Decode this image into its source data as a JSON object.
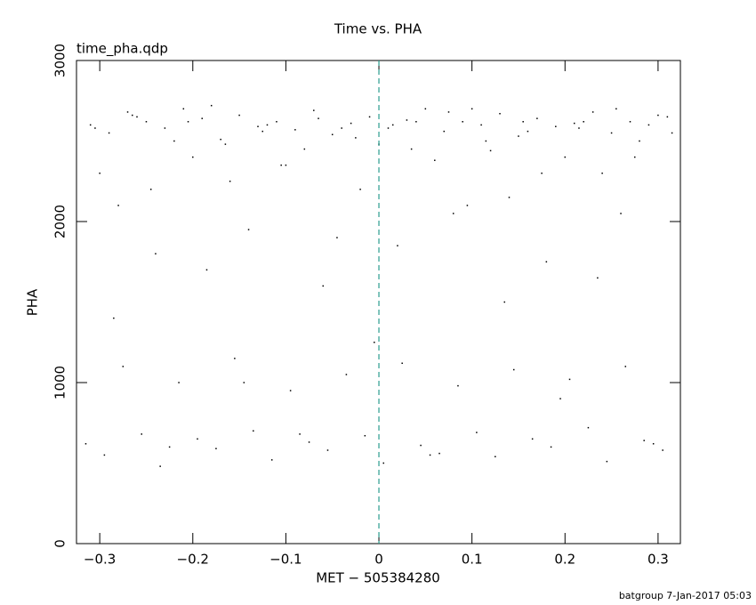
{
  "chart_data": {
    "type": "scatter",
    "title": "Time vs. PHA",
    "subtitle": "time_pha.qdp",
    "x_label": "MET − 505384280",
    "y_label": "PHA",
    "footer": "batgroup  7-Jan-2017 05:03",
    "xlim": [
      -0.325,
      0.324
    ],
    "ylim": [
      0,
      3000
    ],
    "xticks": [
      {
        "value": -0.3,
        "label": "−0.3"
      },
      {
        "value": -0.2,
        "label": "−0.2"
      },
      {
        "value": -0.1,
        "label": "−0.1"
      },
      0,
      0.1,
      0.2,
      0.3
    ],
    "yticks": [
      0,
      1000,
      2000,
      3000
    ],
    "vline": 0,
    "vline_color": "#2a9d8f",
    "color": "#000000",
    "x": [
      -0.31,
      -0.29,
      -0.27,
      -0.25,
      -0.23,
      -0.21,
      -0.19,
      -0.17,
      -0.15,
      -0.13,
      -0.11,
      -0.09,
      -0.07,
      -0.05,
      -0.03,
      -0.01,
      0.01,
      0.03,
      0.05,
      0.07,
      0.09,
      0.11,
      0.13,
      0.15,
      0.17,
      0.19,
      0.21,
      0.23,
      0.25,
      0.27,
      0.29,
      0.31,
      -0.3,
      -0.28,
      -0.26,
      -0.24,
      -0.22,
      -0.2,
      -0.18,
      -0.16,
      -0.14,
      -0.12,
      -0.1,
      -0.08,
      -0.06,
      -0.04,
      -0.02,
      0.0,
      0.02,
      0.04,
      0.06,
      0.08,
      0.1,
      0.12,
      0.14,
      0.16,
      0.18,
      0.2,
      0.22,
      0.24,
      0.26,
      0.28,
      0.3,
      -0.315,
      -0.295,
      -0.275,
      -0.255,
      -0.235,
      -0.215,
      -0.195,
      -0.175,
      -0.155,
      -0.135,
      -0.115,
      -0.095,
      -0.075,
      -0.055,
      -0.035,
      -0.015,
      0.005,
      0.025,
      0.045,
      0.065,
      0.085,
      0.105,
      0.125,
      0.145,
      0.165,
      0.185,
      0.205,
      0.225,
      0.245,
      0.265,
      0.285,
      0.305,
      -0.305,
      -0.285,
      -0.265,
      -0.245,
      -0.225,
      -0.205,
      -0.185,
      -0.165,
      -0.145,
      -0.125,
      -0.105,
      -0.085,
      -0.065,
      -0.045,
      -0.025,
      -0.005,
      0.015,
      0.035,
      0.055,
      0.075,
      0.095,
      0.115,
      0.135,
      0.155,
      0.175,
      0.195,
      0.215,
      0.235,
      0.255,
      0.275,
      0.295,
      0.315
    ],
    "y": [
      2600,
      2550,
      2680,
      2620,
      2580,
      2700,
      2640,
      2510,
      2660,
      2590,
      2620,
      2570,
      2690,
      2540,
      2610,
      2650,
      2580,
      2630,
      2700,
      2560,
      2620,
      2600,
      2670,
      2530,
      2640,
      2590,
      2610,
      2680,
      2550,
      2620,
      2600,
      2650,
      2300,
      2100,
      2650,
      1800,
      2500,
      2400,
      2720,
      2250,
      1950,
      2600,
      2350,
      2450,
      1600,
      2580,
      2200,
      2480,
      1850,
      2620,
      2380,
      2050,
      2700,
      2440,
      2150,
      2560,
      1750,
      2400,
      2620,
      2300,
      2050,
      2500,
      2660,
      620,
      550,
      1100,
      680,
      480,
      1000,
      650,
      590,
      1150,
      700,
      520,
      950,
      630,
      580,
      1050,
      670,
      500,
      1120,
      610,
      560,
      980,
      690,
      540,
      1080,
      650,
      600,
      1020,
      720,
      510,
      1100,
      640,
      580,
      2580,
      1400,
      2660,
      2200,
      600,
      2620,
      1700,
      2480,
      1000,
      2560,
      2350,
      680,
      2640,
      1900,
      2520,
      1250,
      2600,
      2450,
      550,
      2680,
      2100,
      2500,
      1500,
      2620,
      2300,
      900,
      2580,
      1650,
      2700,
      2400,
      620,
      2550
    ]
  }
}
